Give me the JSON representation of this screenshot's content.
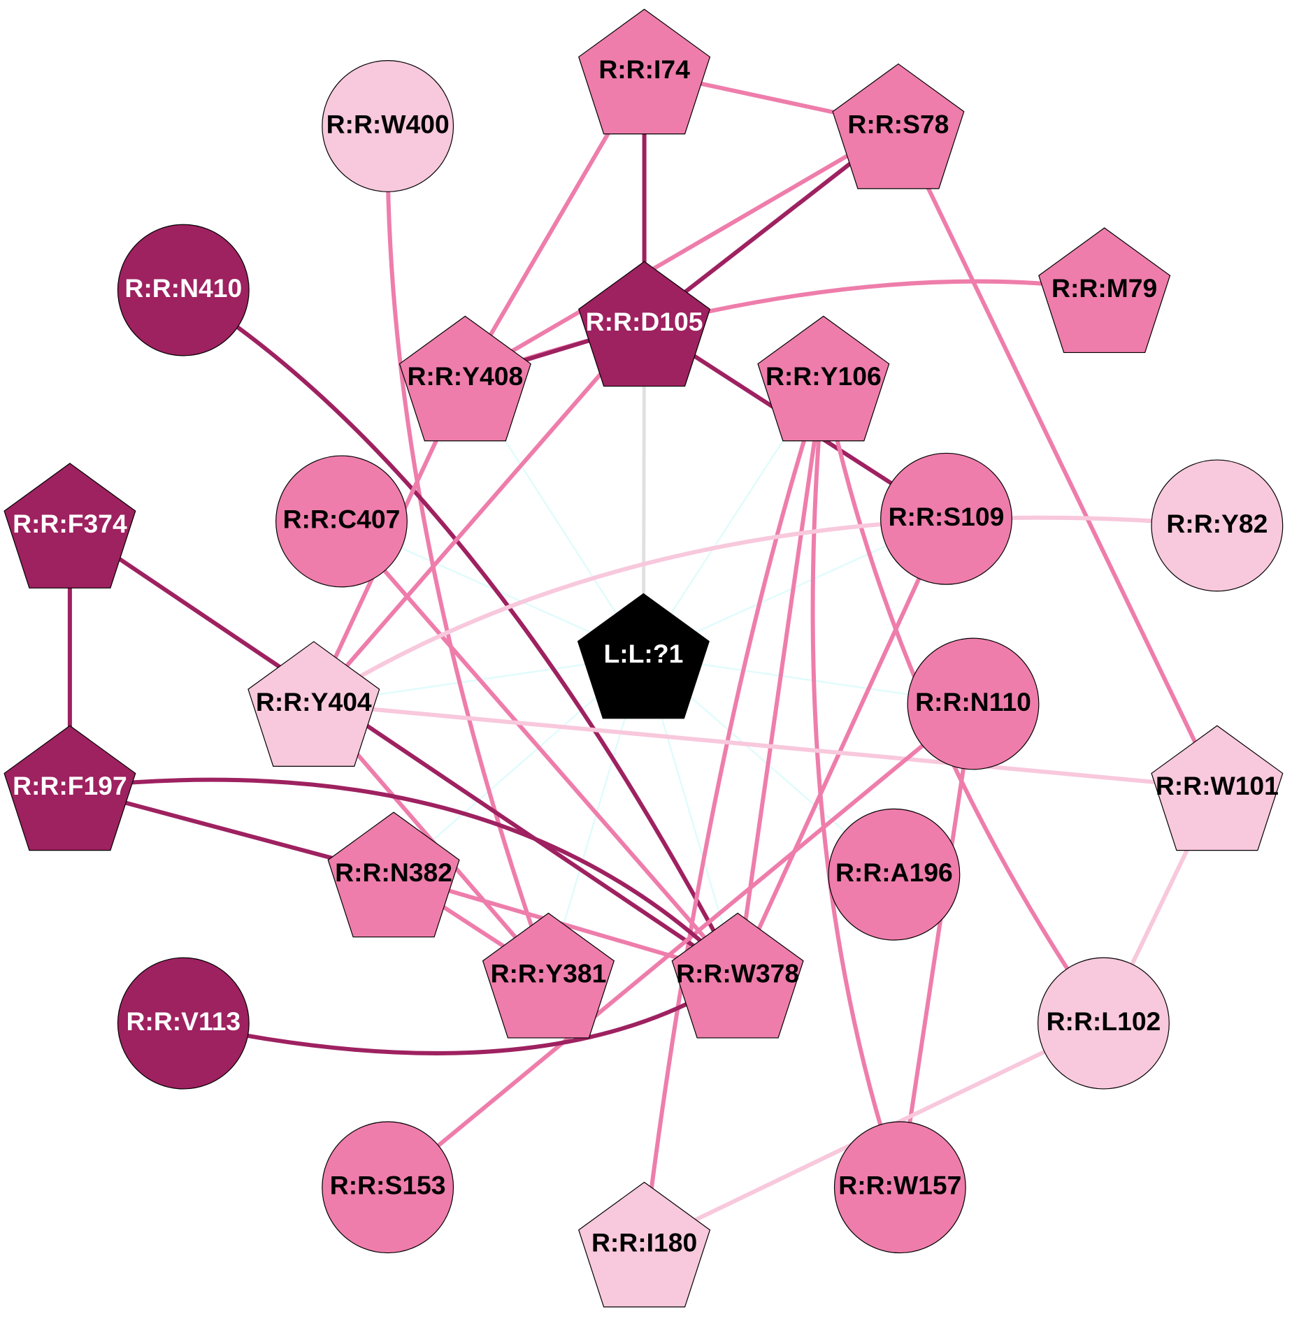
{
  "nodes": [
    {
      "label": "L:L:?1"
    },
    {
      "label": "R:R:I74"
    },
    {
      "label": "R:R:S78"
    },
    {
      "label": "R:R:W400"
    },
    {
      "label": "R:R:N410"
    },
    {
      "label": "R:R:M79"
    },
    {
      "label": "R:R:D105"
    },
    {
      "label": "R:R:Y408"
    },
    {
      "label": "R:R:Y106"
    },
    {
      "label": "R:R:F374"
    },
    {
      "label": "R:R:C407"
    },
    {
      "label": "R:R:S109"
    },
    {
      "label": "R:R:Y82"
    },
    {
      "label": "R:R:Y404"
    },
    {
      "label": "R:R:N110"
    },
    {
      "label": "R:R:W101"
    },
    {
      "label": "R:R:F197"
    },
    {
      "label": "R:R:A196"
    },
    {
      "label": "R:R:N382"
    },
    {
      "label": "R:R:Y381"
    },
    {
      "label": "R:R:W378"
    },
    {
      "label": "R:R:V113"
    },
    {
      "label": "R:R:L102"
    },
    {
      "label": "R:R:S153"
    },
    {
      "label": "R:R:W157"
    },
    {
      "label": "R:R:I180"
    }
  ]
}
